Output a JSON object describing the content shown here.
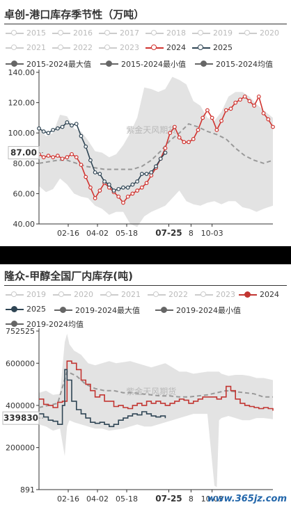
{
  "chart_data": [
    {
      "type": "line",
      "title": "卓创-港口库存季节性（万吨）",
      "ylim": [
        40,
        140
      ],
      "yticks": [
        "140.00",
        "120.00",
        "100.00",
        "80.00",
        "60.00",
        "40.00"
      ],
      "xticks": [
        {
          "label": "02-16",
          "pos": 0.125,
          "bold": false
        },
        {
          "label": "04-02",
          "pos": 0.25,
          "bold": false
        },
        {
          "label": "05-18",
          "pos": 0.375,
          "bold": false
        },
        {
          "label": "07-25",
          "pos": 0.555,
          "bold": true
        },
        {
          "label": "8",
          "pos": 0.65,
          "bold": false
        },
        {
          "label": "10-03",
          "pos": 0.74,
          "bold": false
        }
      ],
      "pointer_value": "87.00",
      "pointer_y": 87,
      "watermark": "紫金天风期货",
      "legend": [
        {
          "label": "2015",
          "style": "hollow-gray"
        },
        {
          "label": "2016",
          "style": "hollow-gray"
        },
        {
          "label": "2017",
          "style": "hollow-gray"
        },
        {
          "label": "2018",
          "style": "hollow-gray"
        },
        {
          "label": "2019",
          "style": "hollow-gray"
        },
        {
          "label": "2020",
          "style": "hollow-gray"
        },
        {
          "label": "2021",
          "style": "hollow-gray"
        },
        {
          "label": "2022",
          "style": "hollow-gray"
        },
        {
          "label": "2023",
          "style": "hollow-gray"
        },
        {
          "label": "2024",
          "style": "hollow-red"
        },
        {
          "label": "2025",
          "style": "hollow-navy"
        },
        {
          "label": "2015-2024最大值",
          "style": "filled-dark"
        },
        {
          "label": "2015-2024最小值",
          "style": "filled-dark"
        },
        {
          "label": "2015-2024均值",
          "style": "filled-dark"
        }
      ],
      "band_x": [
        0,
        0.03,
        0.06,
        0.09,
        0.12,
        0.15,
        0.18,
        0.21,
        0.24,
        0.27,
        0.3,
        0.33,
        0.36,
        0.39,
        0.42,
        0.45,
        0.48,
        0.51,
        0.54,
        0.57,
        0.6,
        0.63,
        0.66,
        0.69,
        0.72,
        0.75,
        0.78,
        0.81,
        0.84,
        0.87,
        0.9,
        0.93,
        0.96,
        1.0
      ],
      "band_max": [
        103,
        98,
        100,
        112,
        111,
        103,
        101,
        95,
        88,
        87,
        84,
        86,
        92,
        100,
        110,
        130,
        129,
        127,
        129,
        137,
        135,
        132,
        121,
        118,
        110,
        108,
        114,
        124,
        127,
        127,
        124,
        119,
        115,
        110
      ],
      "band_min": [
        65,
        61,
        63,
        70,
        66,
        60,
        58,
        57,
        52,
        50,
        46,
        48,
        48,
        40,
        38,
        45,
        48,
        50,
        52,
        57,
        62,
        55,
        53,
        52,
        54,
        55,
        53,
        55,
        55,
        51,
        50,
        48,
        50,
        52
      ],
      "series": [
        {
          "name": "2015-2024均值",
          "color": "#999999",
          "dashed": true,
          "markers": false,
          "x": [
            0,
            0.04,
            0.08,
            0.12,
            0.16,
            0.2,
            0.24,
            0.28,
            0.32,
            0.36,
            0.4,
            0.44,
            0.48,
            0.52,
            0.56,
            0.6,
            0.64,
            0.68,
            0.72,
            0.76,
            0.8,
            0.84,
            0.88,
            0.92,
            0.96,
            1.0
          ],
          "y": [
            80,
            81,
            82,
            82,
            80,
            78,
            77,
            76,
            76,
            76,
            76,
            78,
            82,
            88,
            95,
            100,
            106,
            104,
            101,
            99,
            96,
            90,
            85,
            82,
            80,
            82
          ]
        },
        {
          "name": "2024",
          "color": "#d0332f",
          "dashed": false,
          "markers": true,
          "x": [
            0,
            0.02,
            0.04,
            0.06,
            0.08,
            0.1,
            0.12,
            0.14,
            0.16,
            0.18,
            0.2,
            0.22,
            0.24,
            0.26,
            0.28,
            0.3,
            0.32,
            0.34,
            0.36,
            0.38,
            0.4,
            0.42,
            0.44,
            0.46,
            0.48,
            0.5,
            0.52,
            0.54,
            0.56,
            0.58,
            0.6,
            0.62,
            0.64,
            0.66,
            0.68,
            0.7,
            0.72,
            0.74,
            0.76,
            0.78,
            0.8,
            0.82,
            0.84,
            0.86,
            0.88,
            0.9,
            0.92,
            0.94,
            0.96,
            0.98,
            1.0
          ],
          "y": [
            86,
            84,
            85,
            84,
            85,
            83,
            84,
            86,
            84,
            79,
            71,
            64,
            57,
            62,
            67,
            64,
            61,
            58,
            54,
            58,
            60,
            62,
            64,
            67,
            72,
            77,
            83,
            90,
            100,
            104,
            97,
            94,
            94,
            96,
            102,
            110,
            115,
            110,
            102,
            108,
            115,
            116,
            120,
            122,
            124,
            121,
            118,
            124,
            113,
            109,
            104
          ]
        },
        {
          "name": "2025",
          "color": "#2f4554",
          "dashed": false,
          "markers": true,
          "x": [
            0,
            0.02,
            0.04,
            0.06,
            0.08,
            0.1,
            0.12,
            0.14,
            0.16,
            0.18,
            0.2,
            0.22,
            0.24,
            0.26,
            0.28,
            0.3,
            0.32,
            0.34,
            0.36,
            0.38,
            0.4,
            0.42,
            0.44,
            0.46,
            0.48,
            0.5,
            0.52,
            0.54
          ],
          "y": [
            103,
            101,
            100,
            102,
            103,
            104,
            107,
            105,
            106,
            98,
            91,
            82,
            74,
            73,
            68,
            66,
            62,
            63,
            64,
            64,
            66,
            68,
            73,
            73,
            74,
            78,
            83,
            87
          ]
        }
      ]
    },
    {
      "type": "line",
      "title": "隆众-甲醇全国厂内库存(吨)",
      "ylim": [
        891,
        752525
      ],
      "yticks": [
        "752525",
        "600000",
        "400000",
        "200000",
        "891"
      ],
      "ytick_values": [
        752525,
        600000,
        400000,
        200000,
        891
      ],
      "xticks": [
        {
          "label": "02-16",
          "pos": 0.125,
          "bold": false
        },
        {
          "label": "04-02",
          "pos": 0.25,
          "bold": false
        },
        {
          "label": "05-18",
          "pos": 0.375,
          "bold": false
        },
        {
          "label": "07-25",
          "pos": 0.555,
          "bold": true
        },
        {
          "label": "8",
          "pos": 0.65,
          "bold": false
        },
        {
          "label": "10-03",
          "pos": 0.74,
          "bold": false
        }
      ],
      "pointer_value": "339830",
      "pointer_y": 339830,
      "watermark": "紫金天风期货",
      "site_mark": "www.365jz.com",
      "legend": [
        {
          "label": "2019",
          "style": "hollow-gray"
        },
        {
          "label": "2020",
          "style": "hollow-gray"
        },
        {
          "label": "2021",
          "style": "hollow-gray"
        },
        {
          "label": "2022",
          "style": "hollow-gray"
        },
        {
          "label": "2023",
          "style": "hollow-gray"
        },
        {
          "label": "2024",
          "style": "filled-red"
        },
        {
          "label": "2025",
          "style": "filled-navy"
        },
        {
          "label": "2019-2024最大值",
          "style": "filled-dark"
        },
        {
          "label": "2019-2024最小值",
          "style": "filled-dark"
        },
        {
          "label": "2019-2024均值",
          "style": "filled-dark"
        }
      ],
      "band_x": [
        0,
        0.03,
        0.06,
        0.09,
        0.11,
        0.12,
        0.13,
        0.15,
        0.18,
        0.21,
        0.24,
        0.27,
        0.3,
        0.33,
        0.36,
        0.39,
        0.42,
        0.45,
        0.48,
        0.51,
        0.54,
        0.57,
        0.6,
        0.63,
        0.66,
        0.69,
        0.72,
        0.75,
        0.76,
        0.77,
        0.78,
        0.81,
        0.84,
        0.87,
        0.9,
        0.93,
        0.96,
        1.0
      ],
      "band_max": [
        460000,
        470000,
        450000,
        455000,
        700000,
        740000,
        690000,
        660000,
        640000,
        600000,
        590000,
        600000,
        610000,
        600000,
        605000,
        610000,
        600000,
        590000,
        580000,
        590000,
        600000,
        580000,
        560000,
        560000,
        550000,
        555000,
        560000,
        560000,
        560000,
        560000,
        550000,
        540000,
        545000,
        545000,
        540000,
        530000,
        530000,
        520000
      ],
      "band_min": [
        310000,
        300000,
        280000,
        290000,
        160000,
        300000,
        330000,
        320000,
        310000,
        300000,
        290000,
        290000,
        280000,
        285000,
        290000,
        300000,
        310000,
        300000,
        300000,
        310000,
        320000,
        330000,
        340000,
        350000,
        360000,
        360000,
        360000,
        20000,
        12000,
        330000,
        340000,
        350000,
        340000,
        330000,
        330000,
        340000,
        340000,
        335000
      ],
      "series": [
        {
          "name": "2019-2024均值",
          "color": "#999999",
          "dashed": true,
          "markers": false,
          "x": [
            0,
            0.04,
            0.08,
            0.12,
            0.16,
            0.2,
            0.24,
            0.28,
            0.32,
            0.36,
            0.4,
            0.44,
            0.48,
            0.52,
            0.56,
            0.6,
            0.64,
            0.68,
            0.72,
            0.76,
            0.8,
            0.84,
            0.88,
            0.92,
            0.96,
            1.0
          ],
          "y": [
            390000,
            400000,
            410000,
            560000,
            540000,
            500000,
            480000,
            470000,
            470000,
            460000,
            460000,
            455000,
            450000,
            445000,
            445000,
            440000,
            440000,
            445000,
            450000,
            460000,
            470000,
            465000,
            460000,
            455000,
            440000,
            440000
          ]
        },
        {
          "name": "2024",
          "color": "#c23531",
          "dashed": false,
          "markers": false,
          "step": true,
          "x": [
            0,
            0.02,
            0.04,
            0.06,
            0.08,
            0.1,
            0.12,
            0.14,
            0.16,
            0.18,
            0.2,
            0.22,
            0.24,
            0.26,
            0.28,
            0.3,
            0.32,
            0.34,
            0.36,
            0.38,
            0.4,
            0.42,
            0.44,
            0.46,
            0.48,
            0.5,
            0.52,
            0.54,
            0.56,
            0.58,
            0.6,
            0.62,
            0.64,
            0.66,
            0.68,
            0.7,
            0.72,
            0.74,
            0.76,
            0.78,
            0.8,
            0.82,
            0.84,
            0.86,
            0.88,
            0.9,
            0.92,
            0.94,
            0.96,
            0.98,
            1.0
          ],
          "y": [
            430000,
            405000,
            400000,
            390000,
            415000,
            420000,
            610000,
            600000,
            570000,
            520000,
            500000,
            470000,
            440000,
            450000,
            420000,
            420000,
            395000,
            400000,
            390000,
            385000,
            400000,
            410000,
            400000,
            420000,
            410000,
            420000,
            410000,
            400000,
            410000,
            420000,
            430000,
            425000,
            410000,
            420000,
            430000,
            440000,
            440000,
            440000,
            430000,
            440000,
            490000,
            470000,
            430000,
            410000,
            400000,
            395000,
            390000,
            385000,
            390000,
            385000,
            375000
          ]
        },
        {
          "name": "2025",
          "color": "#2f4554",
          "dashed": false,
          "markers": false,
          "step": true,
          "x": [
            0,
            0.02,
            0.04,
            0.06,
            0.08,
            0.1,
            0.11,
            0.12,
            0.14,
            0.16,
            0.18,
            0.2,
            0.22,
            0.24,
            0.26,
            0.28,
            0.3,
            0.32,
            0.34,
            0.36,
            0.38,
            0.4,
            0.42,
            0.44,
            0.46,
            0.48,
            0.5,
            0.52,
            0.54
          ],
          "y": [
            360000,
            345000,
            330000,
            325000,
            310000,
            400000,
            570000,
            520000,
            420000,
            380000,
            360000,
            340000,
            320000,
            315000,
            320000,
            310000,
            300000,
            310000,
            330000,
            340000,
            350000,
            360000,
            355000,
            370000,
            360000,
            350000,
            345000,
            350000,
            339830
          ]
        }
      ]
    }
  ]
}
